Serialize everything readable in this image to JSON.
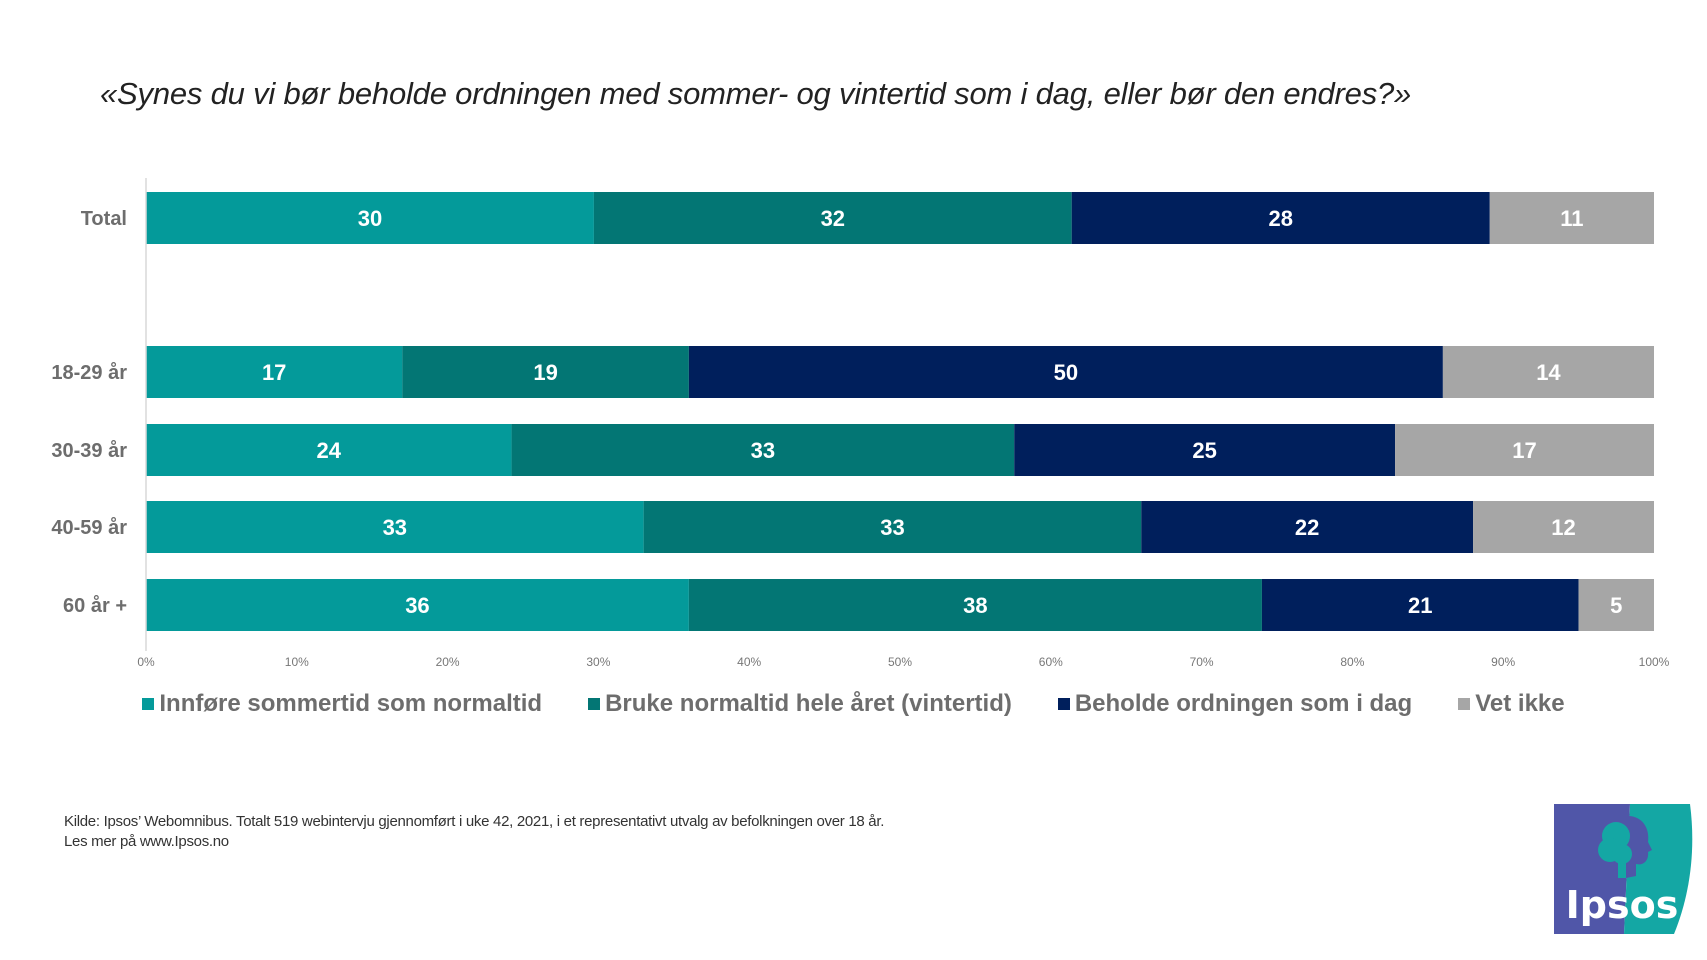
{
  "title": "«Synes du vi bør beholde ordningen med sommer- og vintertid som i dag, eller bør den endres?»",
  "chart_data": {
    "type": "bar",
    "orientation": "horizontal",
    "stacked": "percent",
    "title": "«Synes du vi bør beholde ordningen med sommer- og vintertid som i dag, eller bør den endres?»",
    "xlabel": "",
    "ylabel": "",
    "xlim": [
      0,
      100
    ],
    "x_ticks": [
      "0%",
      "10%",
      "20%",
      "30%",
      "40%",
      "50%",
      "60%",
      "70%",
      "80%",
      "90%",
      "100%"
    ],
    "grid": false,
    "legend_position": "bottom",
    "categories": [
      "Total",
      "18-29 år",
      "30-39 år",
      "40-59 år",
      "60 år +"
    ],
    "series": [
      {
        "name": "Innføre sommertid som normaltid",
        "color": "#049a9a",
        "values": [
          30,
          17,
          24,
          33,
          36
        ]
      },
      {
        "name": "Bruke normaltid hele året (vintertid)",
        "color": "#037674",
        "values": [
          32,
          19,
          33,
          33,
          38
        ]
      },
      {
        "name": "Beholde ordningen som i dag",
        "color": "#001f5c",
        "values": [
          28,
          50,
          25,
          22,
          21
        ]
      },
      {
        "name": "Vet ikke",
        "color": "#a6a6a6",
        "values": [
          11,
          14,
          17,
          12,
          5
        ]
      }
    ]
  },
  "footnote": {
    "line1": "Kilde: Ipsos’ Webomnibus. Totalt  519 webintervju  gjennomført  i uke 42, 2021, i et representativt  utvalg  av befolkningen  over 18 år.",
    "line2": "Les mer på www.Ipsos.no"
  },
  "logo": {
    "text": "Ipsos",
    "color_left": "#5056a8",
    "color_right": "#14a7a4"
  }
}
